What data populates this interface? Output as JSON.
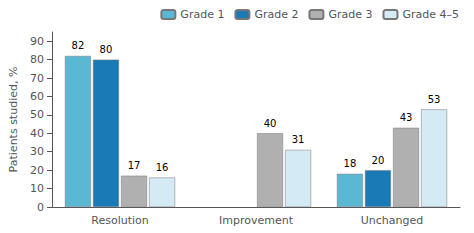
{
  "chart_data": {
    "type": "bar",
    "categories": [
      "Resolution",
      "Improvement",
      "Unchanged"
    ],
    "series": [
      {
        "name": "Grade 1",
        "color": "#5bb8d4",
        "values": [
          82,
          null,
          18
        ]
      },
      {
        "name": "Grade 2",
        "color": "#1a7ab5",
        "values": [
          80,
          null,
          20
        ]
      },
      {
        "name": "Grade 3",
        "color": "#b0b0b0",
        "values": [
          17,
          40,
          43
        ]
      },
      {
        "name": "Grade 4–5",
        "color": "#d4eaf5",
        "values": [
          16,
          31,
          53
        ]
      }
    ],
    "ylabel": "Patients studied, %",
    "ylim": [
      0,
      95
    ],
    "yticks": [
      0,
      10,
      20,
      30,
      40,
      50,
      60,
      70,
      80,
      90
    ],
    "grid": false,
    "legend": "upper right",
    "data_labels": true
  }
}
